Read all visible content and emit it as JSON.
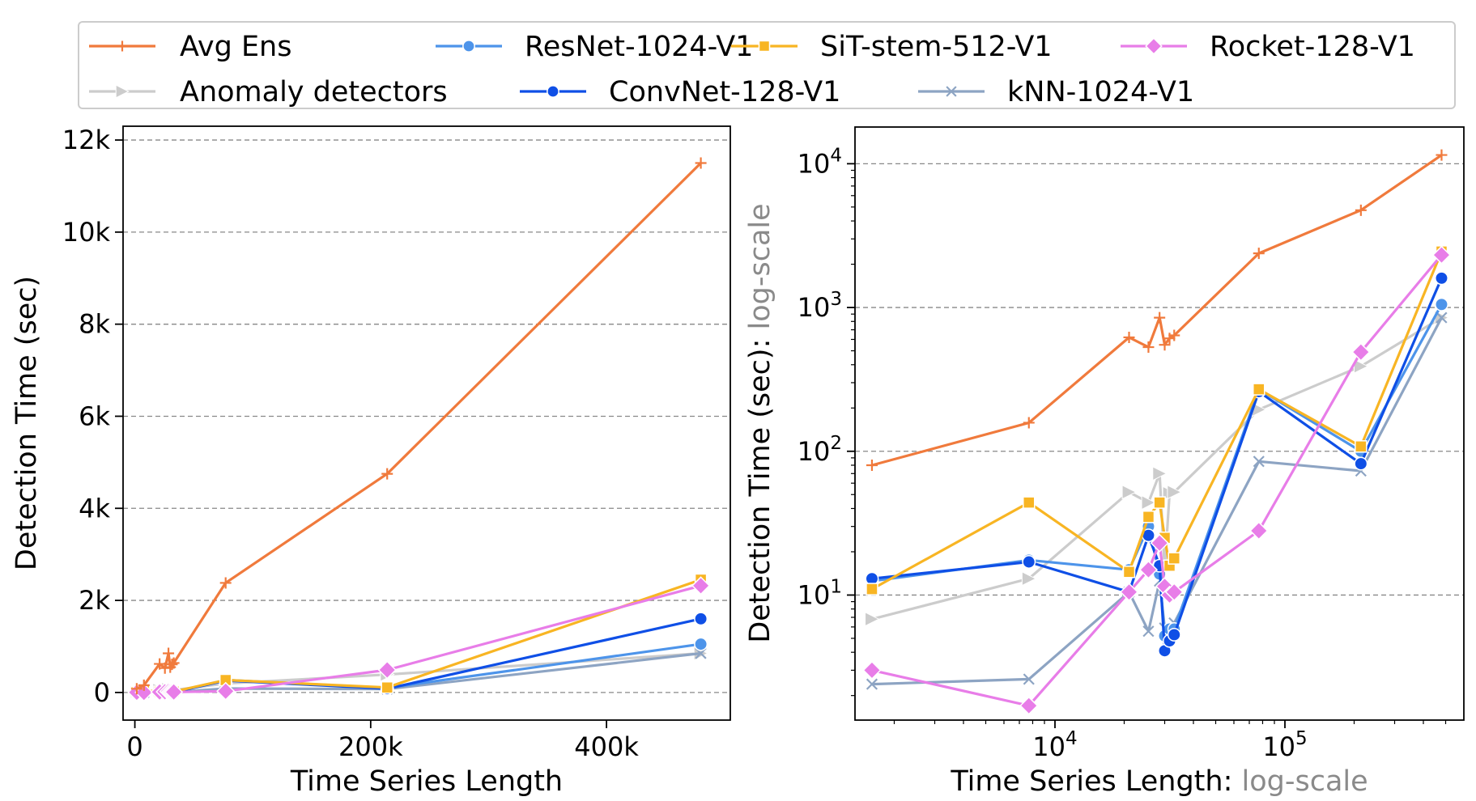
{
  "legend": {
    "entries": [
      {
        "label": "Avg Ens",
        "series": "avg_ens"
      },
      {
        "label": "ResNet-1024-V1",
        "series": "resnet"
      },
      {
        "label": "SiT-stem-512-V1",
        "series": "sit"
      },
      {
        "label": "Rocket-128-V1",
        "series": "rocket"
      },
      {
        "label": "Anomaly detectors",
        "series": "anomaly"
      },
      {
        "label": "ConvNet-128-V1",
        "series": "convnet"
      },
      {
        "label": "kNN-1024-V1",
        "series": "knn"
      }
    ]
  },
  "chart_data": [
    {
      "id": "linear",
      "type": "line",
      "xlabel": "Time Series Length",
      "ylabel": "Detection Time (sec)",
      "xscale": "linear",
      "yscale": "linear",
      "xlim": [
        -10000,
        505000
      ],
      "ylim": [
        -600,
        12300
      ],
      "xticks": [
        {
          "v": 0,
          "label": "0"
        },
        {
          "v": 200000,
          "label": "200k"
        },
        {
          "v": 400000,
          "label": "400k"
        }
      ],
      "yticks": [
        {
          "v": 0,
          "label": "0"
        },
        {
          "v": 2000,
          "label": "2k"
        },
        {
          "v": 4000,
          "label": "4k"
        },
        {
          "v": 6000,
          "label": "6k"
        },
        {
          "v": 8000,
          "label": "8k"
        },
        {
          "v": 10000,
          "label": "10k"
        },
        {
          "v": 12000,
          "label": "12k"
        }
      ],
      "grid": "y"
    },
    {
      "id": "log",
      "type": "line",
      "xlabel": "Time Series Length: ",
      "xlabel_suffix": "log-scale",
      "ylabel": "Detection Time (sec): ",
      "ylabel_suffix": "log-scale",
      "xscale": "log",
      "yscale": "log",
      "xlim": [
        1350,
        600000
      ],
      "ylim": [
        1.35,
        18000
      ],
      "xticks": [
        {
          "v": 10000,
          "base": "10",
          "exp": "4"
        },
        {
          "v": 100000,
          "base": "10",
          "exp": "5"
        }
      ],
      "yticks": [
        {
          "v": 10,
          "base": "10",
          "exp": "1"
        },
        {
          "v": 100,
          "base": "10",
          "exp": "2"
        },
        {
          "v": 1000,
          "base": "10",
          "exp": "3"
        },
        {
          "v": 10000,
          "base": "10",
          "exp": "4"
        }
      ],
      "grid": "y"
    }
  ],
  "series": [
    {
      "key": "anomaly",
      "name": "Anomaly detectors",
      "color": "#cccccc",
      "marker": "triangle-right",
      "z": 0,
      "x": [
        1600,
        7700,
        21000,
        25500,
        28500,
        30000,
        31500,
        33000,
        77000,
        214000,
        480000
      ],
      "y": [
        6.8,
        13,
        52,
        44,
        70,
        15,
        51,
        52,
        195,
        390,
        850
      ]
    },
    {
      "key": "knn",
      "name": "kNN-1024-V1",
      "color": "#8da4c3",
      "marker": "x",
      "z": 1,
      "x": [
        1600,
        7700,
        21000,
        25500,
        28500,
        30000,
        31500,
        33000,
        77000,
        214000,
        480000
      ],
      "y": [
        2.4,
        2.6,
        10.5,
        5.6,
        12.5,
        5.9,
        5.8,
        6.4,
        85,
        73,
        850
      ]
    },
    {
      "key": "resnet",
      "name": "ResNet-1024-V1",
      "color": "#4d94ea",
      "marker": "circle",
      "z": 2,
      "x": [
        1600,
        7700,
        21000,
        25500,
        28500,
        30000,
        31500,
        33000,
        77000,
        214000,
        480000
      ],
      "y": [
        12.5,
        17.5,
        15,
        30,
        14,
        5.2,
        5.8,
        5.8,
        270,
        100,
        1050
      ]
    },
    {
      "key": "convnet",
      "name": "ConvNet-128-V1",
      "color": "#0f4fe6",
      "marker": "circle",
      "z": 3,
      "x": [
        1600,
        7700,
        21000,
        25500,
        28500,
        30000,
        31500,
        33000,
        77000,
        214000,
        480000
      ],
      "y": [
        13,
        17,
        10.5,
        26,
        16,
        4.1,
        4.8,
        5.3,
        260,
        82,
        1600
      ]
    },
    {
      "key": "sit",
      "name": "SiT-stem-512-V1",
      "color": "#f8b523",
      "marker": "square",
      "z": 4,
      "x": [
        1600,
        7700,
        21000,
        25500,
        28500,
        30000,
        31500,
        33000,
        77000,
        214000,
        480000
      ],
      "y": [
        11,
        44,
        14.5,
        35,
        44,
        25,
        16,
        18,
        270,
        108,
        2450
      ]
    },
    {
      "key": "rocket",
      "name": "Rocket-128-V1",
      "color": "#e87de8",
      "marker": "diamond",
      "z": 5,
      "x": [
        1600,
        7700,
        21000,
        25500,
        28500,
        30000,
        31500,
        33000,
        77000,
        214000,
        480000
      ],
      "y": [
        3,
        1.7,
        10.5,
        15,
        23,
        11.5,
        10,
        10.5,
        28,
        490,
        2320
      ]
    },
    {
      "key": "avg_ens",
      "name": "Avg Ens",
      "color": "#f07a3c",
      "marker": "plus",
      "z": 6,
      "x": [
        1600,
        7700,
        21000,
        25500,
        28500,
        30000,
        31500,
        33000,
        77000,
        214000,
        480000
      ],
      "y": [
        80,
        158,
        620,
        530,
        850,
        550,
        610,
        640,
        2380,
        4750,
        11500
      ]
    }
  ]
}
